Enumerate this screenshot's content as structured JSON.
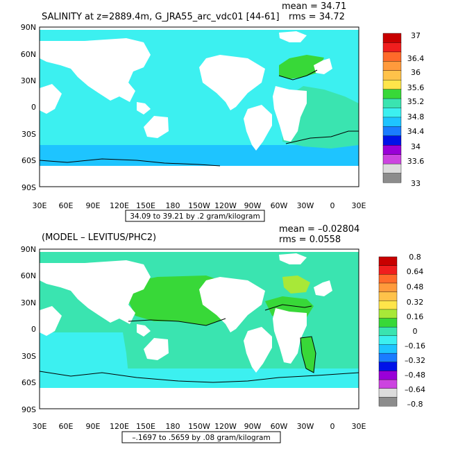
{
  "panels": [
    {
      "title": "SALINITY at z=2889.4m, G_JRA55_arc_vdc01 [44-61]",
      "mean": "mean = 34.71",
      "rms": "rms = 34.72",
      "range_note": "34.09 to 39.21 by .2 gram/kilogram",
      "lat_labels": [
        "90N",
        "60N",
        "30N",
        "0",
        "30S",
        "60S",
        "90S"
      ],
      "lon_labels": [
        "30E",
        "60E",
        "90E",
        "120E",
        "150E",
        "180",
        "150W",
        "120W",
        "90W",
        "60W",
        "30W",
        "0",
        "30E"
      ],
      "colorbar": {
        "labels": [
          "37",
          "36.4",
          "36",
          "35.6",
          "35.2",
          "34.8",
          "34.4",
          "34",
          "33.6",
          "33"
        ],
        "colors": [
          "#c80000",
          "#f01e1e",
          "#ff6a2a",
          "#ff9a3c",
          "#ffc24a",
          "#ffe54a",
          "#38d838",
          "#3ae4b0",
          "#3cf0f0",
          "#1ec4ff",
          "#1a7cff",
          "#0012e8",
          "#9a00d8",
          "#cc44e0",
          "#dcdcdc",
          "#8c8c8c"
        ]
      },
      "ocean_colors": {
        "base": "#3cf0f0",
        "aux": "#3ae4b0",
        "deep": "#1ec4ff",
        "high": "#38d838"
      }
    },
    {
      "title": "(MODEL – LEVITUS/PHC2)",
      "mean": "mean = –0.02804",
      "rms": "rms = 0.0558",
      "range_note": "–.1697 to .5659 by .08 gram/kilogram",
      "lat_labels": [
        "90N",
        "60N",
        "30N",
        "0",
        "30S",
        "60S",
        "90S"
      ],
      "lon_labels": [
        "30E",
        "60E",
        "90E",
        "120E",
        "150E",
        "180",
        "150W",
        "120W",
        "90W",
        "60W",
        "30W",
        "0",
        "30E"
      ],
      "colorbar": {
        "labels": [
          "0.8",
          "0.64",
          "0.48",
          "0.32",
          "0.16",
          "0",
          "–0.16",
          "–0.32",
          "–0.48",
          "–0.64",
          "–0.8"
        ],
        "colors": [
          "#c80000",
          "#f01e1e",
          "#ff6a2a",
          "#ff9a3c",
          "#ffc24a",
          "#ffe54a",
          "#a8e838",
          "#38d838",
          "#3ae4b0",
          "#3cf0f0",
          "#1ec4ff",
          "#1a7cff",
          "#0012e8",
          "#9a00d8",
          "#cc44e0",
          "#dcdcdc",
          "#8c8c8c"
        ]
      },
      "ocean_colors": {
        "base": "#3ae4b0",
        "aux": "#3cf0f0",
        "deep": "#1ec4ff",
        "high": "#38d838"
      }
    }
  ]
}
